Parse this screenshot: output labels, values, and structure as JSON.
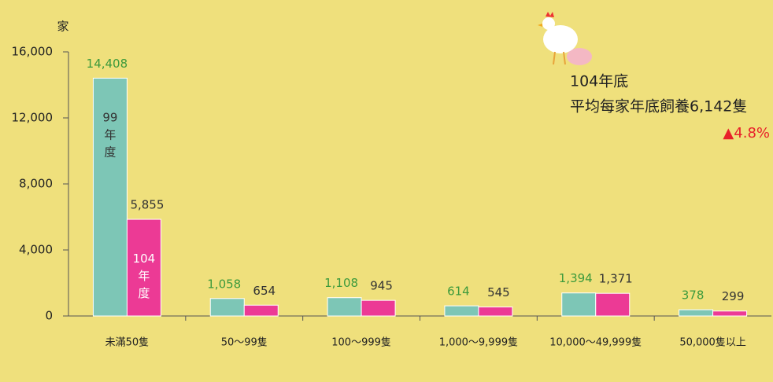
{
  "chart_data": {
    "type": "bar",
    "y_label": "家",
    "categories": [
      "未滿50隻",
      "50～99隻",
      "100～999隻",
      "1,000～9,999隻",
      "10,000～49,999隻",
      "50,000隻以上"
    ],
    "series": [
      {
        "name": "99年度",
        "color": "#7dc6b6",
        "label_color": "#3c9a3c",
        "values": [
          14408,
          1058,
          1108,
          614,
          1394,
          378
        ],
        "value_labels": [
          "14,408",
          "1,058",
          "1,108",
          "614",
          "1,394",
          "378"
        ]
      },
      {
        "name": "104年度",
        "color": "#ec3a95",
        "label_color": "#333333",
        "values": [
          5855,
          654,
          945,
          545,
          1371,
          299
        ],
        "value_labels": [
          "5,855",
          "654",
          "945",
          "545",
          "1,371",
          "299"
        ]
      }
    ],
    "ylim": [
      0,
      16000
    ],
    "yticks": [
      0,
      {
        "value": 4000,
        "label": "4,000"
      },
      {
        "value": 8000,
        "label": "8,000"
      },
      {
        "value": 12000,
        "label": "12,000"
      },
      {
        "value": 16000,
        "label": "16,000"
      }
    ],
    "annotations": [
      "104年底",
      "平均每家年底飼養6,142隻",
      "▲4.8%"
    ]
  }
}
